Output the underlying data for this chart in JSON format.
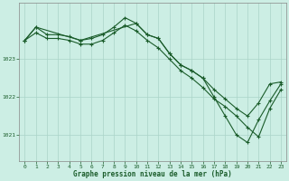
{
  "title": "",
  "xlabel": "Graphe pression niveau de la mer (hPa)",
  "background_color": "#cceee4",
  "grid_color": "#aad4c8",
  "line_color": "#1a5c2a",
  "x_ticks": [
    0,
    1,
    2,
    3,
    4,
    5,
    6,
    7,
    8,
    9,
    10,
    11,
    12,
    13,
    14,
    15,
    16,
    17,
    18,
    19,
    20,
    21,
    22,
    23
  ],
  "y_ticks": [
    1021,
    1022,
    1023
  ],
  "ylim": [
    1020.3,
    1024.5
  ],
  "xlim": [
    -0.5,
    23.5
  ],
  "series1_x": [
    0,
    1,
    2,
    3,
    4,
    5,
    6,
    7,
    8,
    9,
    10,
    11,
    12,
    13,
    14,
    15,
    16,
    17,
    18,
    19,
    20,
    21,
    22,
    23
  ],
  "series1_y": [
    1023.5,
    1023.85,
    1023.65,
    1023.65,
    1023.6,
    1023.5,
    1023.55,
    1023.65,
    1023.85,
    1024.1,
    1023.95,
    1023.65,
    1023.55,
    1023.15,
    1022.85,
    1022.7,
    1022.5,
    1022.2,
    1021.95,
    1021.7,
    1021.5,
    1021.85,
    1022.35,
    1022.4
  ],
  "series2_x": [
    0,
    1,
    2,
    3,
    4,
    5,
    6,
    7,
    8,
    9,
    10,
    11,
    12,
    13,
    14,
    15,
    16,
    17,
    18,
    19,
    20,
    21,
    22,
    23
  ],
  "series2_y": [
    1023.5,
    1023.7,
    1023.55,
    1023.55,
    1023.5,
    1023.4,
    1023.4,
    1023.5,
    1023.7,
    1023.9,
    1023.75,
    1023.5,
    1023.3,
    1023.0,
    1022.7,
    1022.5,
    1022.25,
    1021.95,
    1021.75,
    1021.5,
    1021.2,
    1020.95,
    1021.7,
    1022.2
  ],
  "series3_x": [
    0,
    1,
    5,
    10,
    11,
    12,
    13,
    14,
    15,
    16,
    17,
    18,
    19,
    20,
    21,
    22,
    23
  ],
  "series3_y": [
    1023.5,
    1023.85,
    1023.5,
    1023.95,
    1023.65,
    1023.55,
    1023.15,
    1022.85,
    1022.7,
    1022.5,
    1022.0,
    1021.5,
    1021.0,
    1020.8,
    1021.4,
    1021.9,
    1022.35
  ]
}
